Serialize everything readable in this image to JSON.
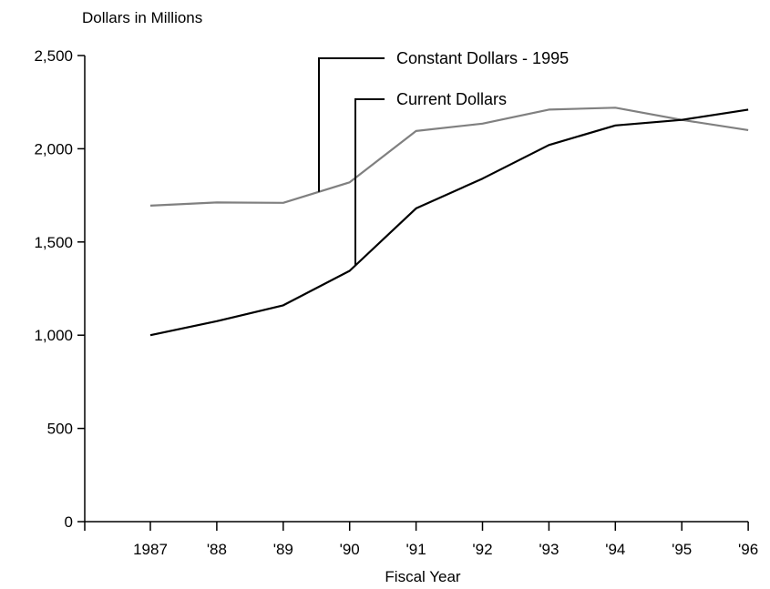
{
  "chart_data": {
    "type": "line",
    "ylabel": "Dollars in Millions",
    "xlabel": "Fiscal Year",
    "title": "",
    "x": [
      "1987",
      "'88",
      "'89",
      "'90",
      "'91",
      "'92",
      "'93",
      "'94",
      "'95",
      "'96"
    ],
    "ylim": [
      0,
      2500
    ],
    "yticks": [
      0,
      500,
      1000,
      1500,
      2000,
      2500
    ],
    "ytick_labels": [
      "0",
      "500",
      "1,000",
      "1,500",
      "2,000",
      "2,500"
    ],
    "grid": false,
    "series": [
      {
        "name": "Constant Dollars - 1995",
        "color": "#808080",
        "values": [
          1695,
          1712,
          1710,
          1820,
          2095,
          2135,
          2210,
          2220,
          2155,
          2100
        ]
      },
      {
        "name": "Current Dollars",
        "color": "#000000",
        "values": [
          1000,
          1075,
          1160,
          1345,
          1680,
          1840,
          2020,
          2125,
          2155,
          2210
        ]
      }
    ]
  }
}
